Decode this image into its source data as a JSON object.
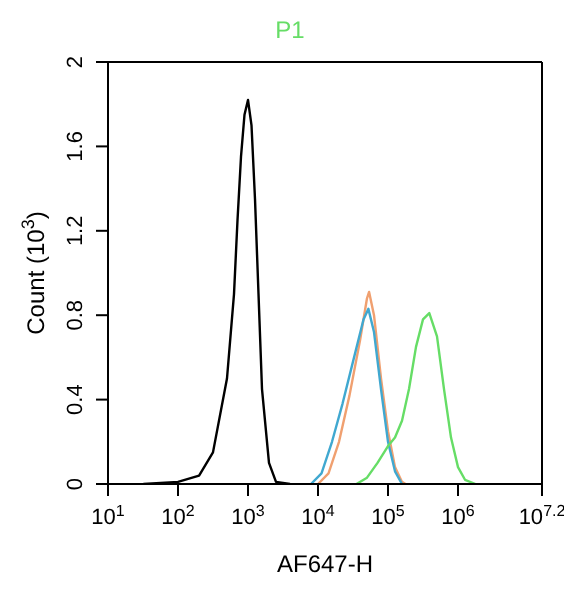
{
  "chart_data": {
    "type": "line",
    "title": "P1",
    "xlabel": "AF647-H",
    "ylabel": "Count (10$^{3}$)",
    "log": "x",
    "xlim": [
      10,
      15848932
    ],
    "xticks": [
      {
        "value": 10,
        "label": "10$^{1}$"
      },
      {
        "value": 100,
        "label": "10$^{2}$"
      },
      {
        "value": 1000,
        "label": "10$^{3}$"
      },
      {
        "value": 10000,
        "label": "10$^{4}$"
      },
      {
        "value": 100000,
        "label": "10$^{5}$"
      },
      {
        "value": 1000000,
        "label": "10$^{6}$"
      },
      {
        "value": 15848932,
        "label": "10$^{7.2}$"
      }
    ],
    "ylim": [
      0,
      2
    ],
    "yticks": [
      0,
      0.4,
      0.8,
      1.2,
      1.6,
      2
    ],
    "grid": false,
    "legend": false,
    "marker": "none",
    "line_style": "solid",
    "series": [
      {
        "color": "#000000",
        "x": [
          32,
          100,
          200,
          316,
          501,
          631,
          708,
          794,
          891,
          1000,
          1122,
          1259,
          1413,
          1585,
          1995,
          2512,
          3981
        ],
        "values": [
          0,
          0.01,
          0.04,
          0.15,
          0.5,
          0.9,
          1.25,
          1.55,
          1.75,
          1.82,
          1.7,
          1.35,
          0.9,
          0.45,
          0.1,
          0.01,
          0
        ]
      },
      {
        "color": "#f0a070",
        "x": [
          10000,
          14125,
          19953,
          28184,
          39811,
          50119,
          53703,
          63096,
          79433,
          100000,
          125893,
          158489,
          177828
        ],
        "values": [
          0,
          0.05,
          0.2,
          0.42,
          0.68,
          0.88,
          0.91,
          0.8,
          0.5,
          0.25,
          0.08,
          0.01,
          0
        ]
      },
      {
        "color": "#40a8d0",
        "x": [
          7943,
          11220,
          15849,
          22387,
          31623,
          44668,
          52481,
          63096,
          79433,
          100000,
          125893,
          158489
        ],
        "values": [
          0,
          0.05,
          0.2,
          0.38,
          0.58,
          0.78,
          0.83,
          0.72,
          0.45,
          0.2,
          0.06,
          0
        ]
      },
      {
        "color": "#66dd66",
        "x": [
          35481,
          50119,
          70795,
          100000,
          125893,
          158489,
          199526,
          251189,
          316228,
          389045,
          501187,
          630957,
          794328,
          1000000,
          1258925,
          1778279
        ],
        "values": [
          0,
          0.03,
          0.1,
          0.18,
          0.22,
          0.3,
          0.45,
          0.65,
          0.78,
          0.81,
          0.7,
          0.45,
          0.22,
          0.08,
          0.02,
          0
        ]
      }
    ]
  }
}
